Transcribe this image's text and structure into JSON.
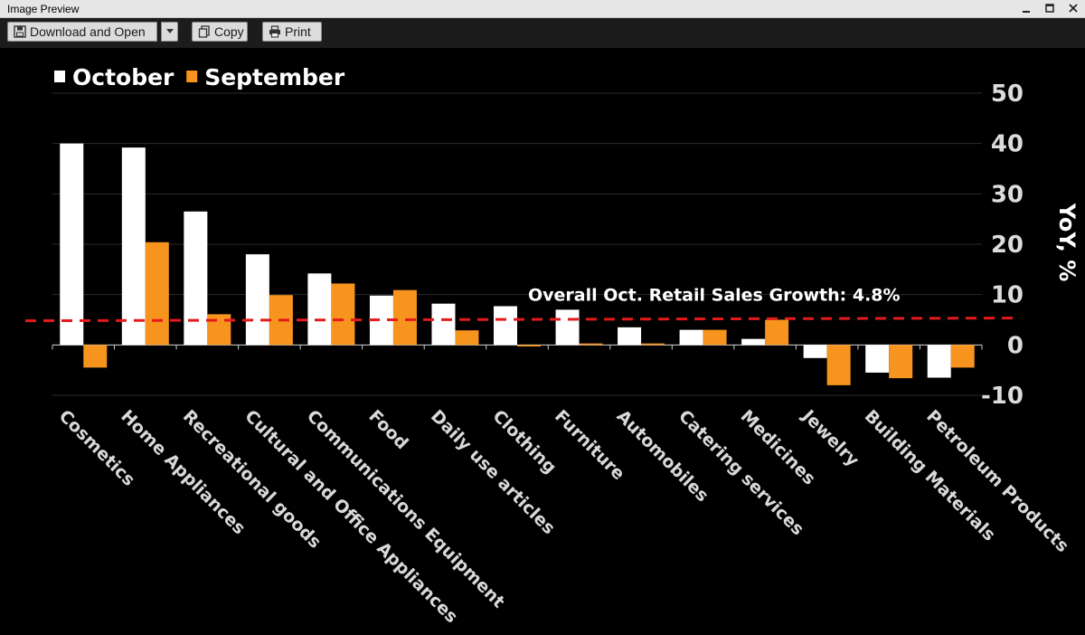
{
  "window": {
    "title": "Image Preview",
    "controls": [
      "minimize-icon",
      "maximize-icon",
      "close-icon"
    ]
  },
  "toolbar": {
    "download_label": "Download and Open",
    "download_icon": "save-icon",
    "dropdown_icon": "caret-down-icon",
    "copy_label": "Copy",
    "copy_icon": "copy-icon",
    "print_label": "Print",
    "print_icon": "printer-icon"
  },
  "chart_data": {
    "type": "bar",
    "categories": [
      "Cosmetics",
      "Home Appliances",
      "Recreational goods",
      "Cultural and Office Appliances",
      "Communications Equipment",
      "Food",
      "Daily use articles",
      "Clothing",
      "Furniture",
      "Automobiles",
      "Catering services",
      "Medicines",
      "Jewelry",
      "Building Materials",
      "Petroleum Products"
    ],
    "series": [
      {
        "name": "October",
        "color": "#ffffff",
        "values": [
          40.0,
          39.2,
          26.5,
          18.0,
          14.2,
          9.8,
          8.2,
          7.7,
          7.0,
          3.5,
          3.0,
          1.2,
          -2.6,
          -5.5,
          -6.5
        ]
      },
      {
        "name": "September",
        "color": "#f7941d",
        "values": [
          -4.5,
          20.4,
          6.1,
          9.9,
          12.2,
          10.9,
          2.9,
          -0.3,
          0.3,
          0.3,
          3.0,
          5.0,
          -8.0,
          -6.6,
          -4.5
        ]
      }
    ],
    "ylabel": "YoY, %",
    "ylim": [
      -10,
      50
    ],
    "yticks": [
      50,
      40,
      30,
      20,
      10,
      0,
      -10
    ],
    "grid": true,
    "legend_position": "top-left",
    "reference_line": {
      "value": 4.8,
      "label": "Overall Oct. Retail Sales Growth: 4.8%",
      "color": "#e41a1c"
    }
  }
}
